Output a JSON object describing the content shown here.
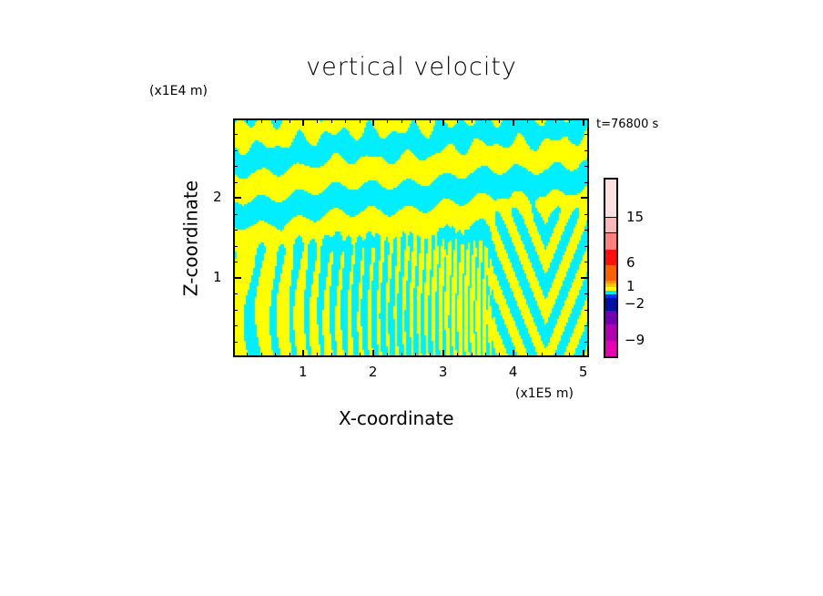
{
  "chart_data": {
    "type": "heatmap",
    "title": "vertical velocity",
    "xlabel": "X-coordinate",
    "ylabel": "Z-coordinate",
    "x_unit": "(x1E5 m)",
    "y_unit": "(x1E4 m)",
    "time_label": "t=76800 s",
    "xlim": [
      0,
      5.08
    ],
    "ylim": [
      0,
      3.0
    ],
    "x_ticks": [
      "1",
      "2",
      "3",
      "4",
      "5"
    ],
    "x_tick_values": [
      1,
      2,
      3,
      4,
      5
    ],
    "y_ticks": [
      "1",
      "2"
    ],
    "y_tick_values": [
      1,
      2
    ],
    "dominant_colors": {
      "positive": "#ffff00",
      "negative": "#00eeff"
    },
    "colorbar": {
      "segments": [
        {
          "color": "#e800b0"
        },
        {
          "color": "#b000b0"
        },
        {
          "color": "#7000b0"
        },
        {
          "color": "#0010a0"
        },
        {
          "color": "#0030ff"
        },
        {
          "color": "#00e8ff"
        },
        {
          "color": "#ffff00"
        },
        {
          "color": "#ffc800"
        },
        {
          "color": "#ff9800"
        },
        {
          "color": "#ff6000"
        },
        {
          "color": "#ff1010"
        },
        {
          "color": "#ff8080"
        },
        {
          "color": "#ffb8b8"
        },
        {
          "color": "#ffe0e0"
        }
      ],
      "segment_fractions": [
        0.1,
        0.087,
        0.077,
        0.072,
        0.02,
        0.02,
        0.02,
        0.02,
        0.015,
        0.087,
        0.087,
        0.092,
        0.087,
        0.216
      ],
      "labels": [
        "15",
        "6",
        "1",
        "−2",
        "−9"
      ],
      "label_values": [
        15,
        6,
        1,
        -2,
        -9
      ]
    }
  }
}
